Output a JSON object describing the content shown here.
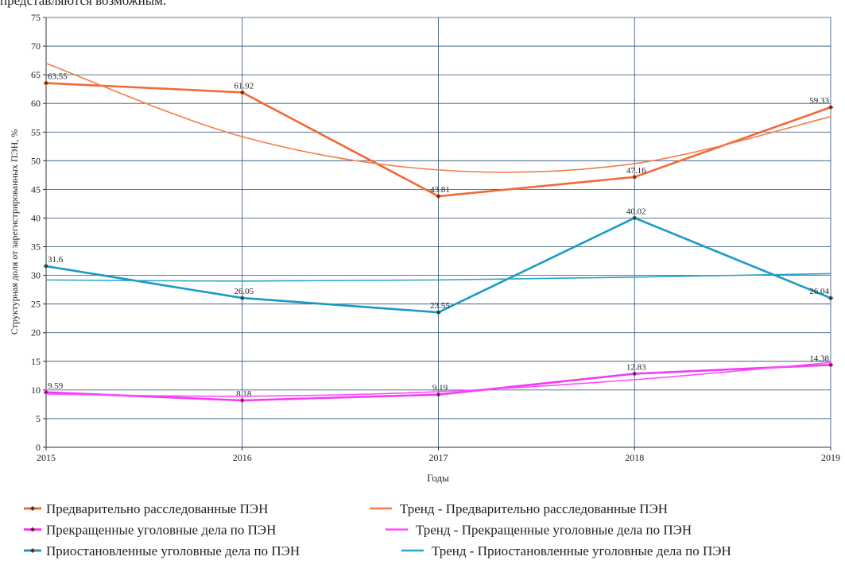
{
  "chart_data": {
    "type": "line",
    "text_above": "представляются возможным.",
    "x_label": "Годы",
    "y_label": "Структурная доля от зарегистрированных ПЭН, %",
    "x": [
      2015,
      2016,
      2017,
      2018,
      2019
    ],
    "xlim": [
      2015,
      2019
    ],
    "xticks": [
      2015,
      2016,
      2017,
      2018,
      2019
    ],
    "ylim": [
      0,
      75
    ],
    "yticks": [
      0,
      5,
      10,
      15,
      20,
      25,
      30,
      35,
      40,
      45,
      50,
      55,
      60,
      65,
      70,
      75
    ],
    "grid": true,
    "legend": "bottom",
    "series": [
      {
        "name": "Предварительно расследованные ПЭН",
        "color": "#f06a36",
        "style": "data",
        "values": [
          63.55,
          61.92,
          43.81,
          47.16,
          59.33
        ]
      },
      {
        "name": "Тренд - Предварительно расследованные ПЭН",
        "color": "#f47c48",
        "style": "trend",
        "values": [
          67,
          54.2,
          48.4,
          49.5,
          57.7
        ]
      },
      {
        "name": "Прекращенные уголовные дела по ПЭН",
        "color": "#f23cf2",
        "style": "data",
        "values": [
          9.59,
          8.18,
          9.19,
          12.83,
          14.38
        ]
      },
      {
        "name": "Тренд - Прекращенные уголовные дела по ПЭН",
        "color": "#ff4dff",
        "style": "trend",
        "values": [
          9.3,
          8.9,
          9.7,
          11.8,
          14.8
        ]
      },
      {
        "name": "Приостановленные уголовные дела по ПЭН",
        "color": "#1b9ac6",
        "style": "data",
        "values": [
          31.6,
          26.05,
          23.55,
          40.02,
          26.04
        ]
      },
      {
        "name": "Тренд - Приостановленные уголовные дела по ПЭН",
        "color": "#2aa2cc",
        "style": "trend",
        "values": [
          29.2,
          29.0,
          29.2,
          29.7,
          30.3
        ]
      }
    ]
  }
}
